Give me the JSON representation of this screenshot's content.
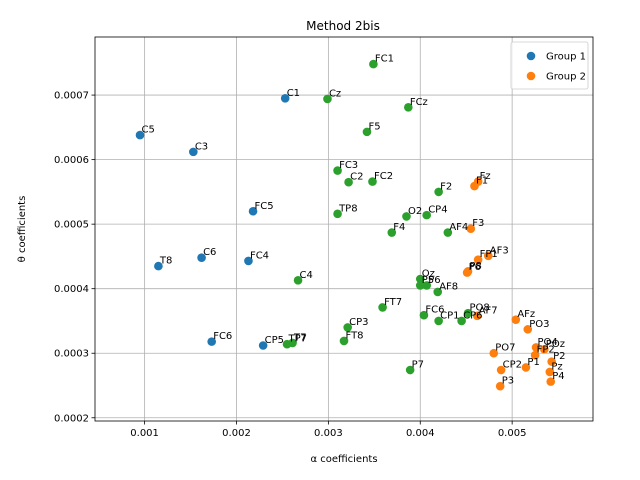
{
  "chart_data": {
    "type": "scatter",
    "title": "Method 2bis",
    "xlabel": "α coefficients",
    "ylabel": "θ coefficients",
    "xlim": [
      0.00046,
      0.00588
    ],
    "ylim": [
      0.000195,
      0.00079
    ],
    "grid": true,
    "legend_position": "top-right",
    "x_ticks": [
      0.001,
      0.002,
      0.003,
      0.004,
      0.005
    ],
    "x_tick_labels": [
      "0.001",
      "0.002",
      "0.003",
      "0.004",
      "0.005"
    ],
    "y_ticks": [
      0.0002,
      0.0003,
      0.0004,
      0.0005,
      0.0006,
      0.0007
    ],
    "y_tick_labels": [
      "0.0002",
      "0.0003",
      "0.0004",
      "0.0005",
      "0.0006",
      "0.0007"
    ],
    "series": [
      {
        "name": "Group 1",
        "color": "#1f77b4",
        "points": [
          {
            "label": "C1",
            "x": 0.00253,
            "y": 0.000695
          },
          {
            "label": "C5",
            "x": 0.00095,
            "y": 0.000638
          },
          {
            "label": "C3",
            "x": 0.00153,
            "y": 0.000612
          },
          {
            "label": "FC5",
            "x": 0.00218,
            "y": 0.00052
          },
          {
            "label": "C6",
            "x": 0.00162,
            "y": 0.000448
          },
          {
            "label": "T8",
            "x": 0.00115,
            "y": 0.000435
          },
          {
            "label": "FC4",
            "x": 0.00213,
            "y": 0.000443
          },
          {
            "label": "FC6",
            "x": 0.00173,
            "y": 0.000318
          },
          {
            "label": "CP5",
            "x": 0.00229,
            "y": 0.000312
          }
        ]
      },
      {
        "name": "",
        "color": "#2ca02c",
        "points": [
          {
            "label": "FC1",
            "x": 0.00349,
            "y": 0.000748
          },
          {
            "label": "Cz",
            "x": 0.00299,
            "y": 0.000694
          },
          {
            "label": "FCz",
            "x": 0.00387,
            "y": 0.000681
          },
          {
            "label": "F5",
            "x": 0.00342,
            "y": 0.000643
          },
          {
            "label": "FC3",
            "x": 0.0031,
            "y": 0.000583
          },
          {
            "label": "C2",
            "x": 0.00322,
            "y": 0.000565
          },
          {
            "label": "FC2",
            "x": 0.00348,
            "y": 0.000566
          },
          {
            "label": "F2",
            "x": 0.0042,
            "y": 0.00055
          },
          {
            "label": "TP8",
            "x": 0.0031,
            "y": 0.000516
          },
          {
            "label": "O2",
            "x": 0.00385,
            "y": 0.000512
          },
          {
            "label": "CP4",
            "x": 0.00407,
            "y": 0.000514
          },
          {
            "label": "F4",
            "x": 0.00369,
            "y": 0.000487
          },
          {
            "label": "AF4",
            "x": 0.0043,
            "y": 0.000487
          },
          {
            "label": "C4",
            "x": 0.00267,
            "y": 0.000413
          },
          {
            "label": "Oz",
            "x": 0.004,
            "y": 0.000415
          },
          {
            "label": "P5",
            "x": 0.004,
            "y": 0.000405
          },
          {
            "label": "P6",
            "x": 0.00407,
            "y": 0.000405
          },
          {
            "label": "AF8",
            "x": 0.00419,
            "y": 0.000395
          },
          {
            "label": "FT7",
            "x": 0.00359,
            "y": 0.000371
          },
          {
            "label": "FC6",
            "x": 0.00404,
            "y": 0.000359
          },
          {
            "label": "CP1",
            "x": 0.0042,
            "y": 0.00035
          },
          {
            "label": "CP6",
            "x": 0.00445,
            "y": 0.00035
          },
          {
            "label": "PO8",
            "x": 0.00452,
            "y": 0.000362
          },
          {
            "label": "CP3",
            "x": 0.00321,
            "y": 0.00034
          },
          {
            "label": "FT8",
            "x": 0.00317,
            "y": 0.000319
          },
          {
            "label": "TP7",
            "x": 0.00255,
            "y": 0.000314
          },
          {
            "label": "T7",
            "x": 0.00261,
            "y": 0.000316
          },
          {
            "label": "P7",
            "x": 0.00389,
            "y": 0.000274
          }
        ]
      },
      {
        "name": "Group 2",
        "color": "#ff7f0e",
        "points": [
          {
            "label": "Fz",
            "x": 0.00463,
            "y": 0.000566
          },
          {
            "label": "F1",
            "x": 0.00459,
            "y": 0.000559
          },
          {
            "label": "F3",
            "x": 0.00455,
            "y": 0.000493
          },
          {
            "label": "AF3",
            "x": 0.00474,
            "y": 0.000451
          },
          {
            "label": "FP1",
            "x": 0.00463,
            "y": 0.000445
          },
          {
            "label": "P8",
            "x": 0.00452,
            "y": 0.000427
          },
          {
            "label": "P6",
            "x": 0.00451,
            "y": 0.000425
          },
          {
            "label": "AF7",
            "x": 0.00462,
            "y": 0.000358
          },
          {
            "label": "AFz",
            "x": 0.00504,
            "y": 0.000352
          },
          {
            "label": "PO3",
            "x": 0.00517,
            "y": 0.000337
          },
          {
            "label": "PO7",
            "x": 0.0048,
            "y": 0.0003
          },
          {
            "label": "PO4",
            "x": 0.00526,
            "y": 0.000309
          },
          {
            "label": "POz",
            "x": 0.00535,
            "y": 0.000306
          },
          {
            "label": "FP2",
            "x": 0.00525,
            "y": 0.000297
          },
          {
            "label": "P2",
            "x": 0.00543,
            "y": 0.000287
          },
          {
            "label": "P1",
            "x": 0.00515,
            "y": 0.000278
          },
          {
            "label": "CP2",
            "x": 0.00488,
            "y": 0.000274
          },
          {
            "label": "Pz",
            "x": 0.00541,
            "y": 0.000271
          },
          {
            "label": "P4",
            "x": 0.00542,
            "y": 0.000256
          },
          {
            "label": "P3",
            "x": 0.00487,
            "y": 0.000249
          }
        ]
      }
    ],
    "legend": [
      {
        "name": "Group 1",
        "color": "#1f77b4"
      },
      {
        "name": "Group 2",
        "color": "#ff7f0e"
      }
    ]
  }
}
